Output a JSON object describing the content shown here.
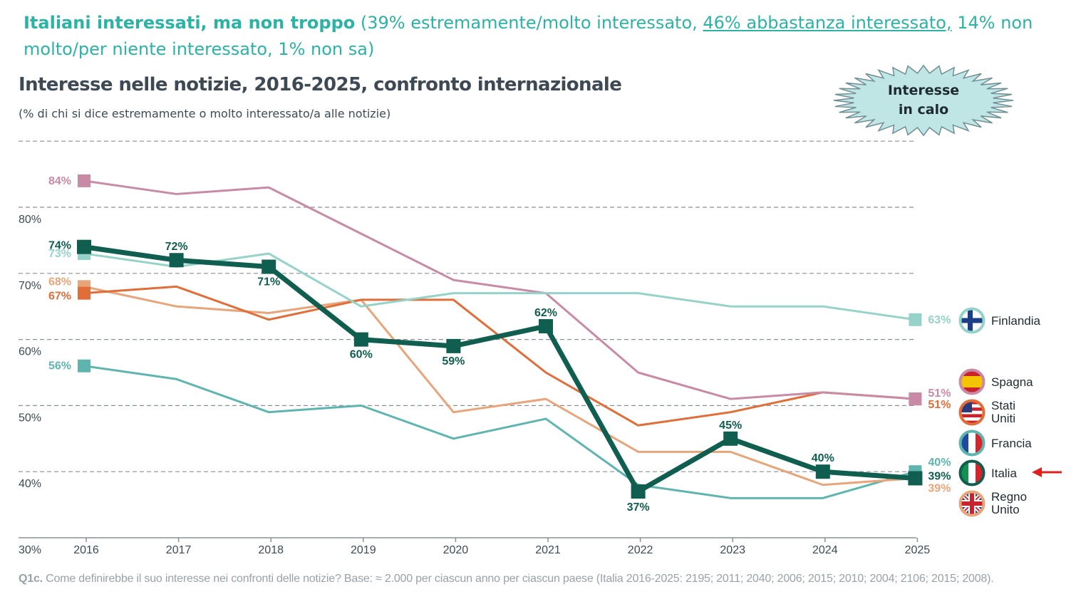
{
  "headline": {
    "bold": "Italiani interessati, ma non troppo",
    "part1": " (39% estremamente/molto interessato, ",
    "underlined": "46% abbastanza interessato,",
    "part2": " 14% non molto/per niente interessato, 1% non sa)"
  },
  "burst_label": {
    "line1": "Interesse",
    "line2": "in calo"
  },
  "footnote": {
    "code": "Q1c.",
    "text": " Come definirebbe il suo interesse nei confronti delle notizie? Base: ≈ 2.000 per ciascun anno per ciascun paese (Italia 2016-2025: 2195; 2011; 2040; 2006; 2015; 2010; 2004; 2106; 2015; 2008)."
  },
  "chart_data": {
    "type": "line",
    "title": "Interesse nelle notizie, 2016-2025, confronto internazionale",
    "subtitle": "(% di chi si dice estremamente o molto interessato/a alle notizie)",
    "x": [
      "2016",
      "2017",
      "2018",
      "2019",
      "2020",
      "2021",
      "2022",
      "2023",
      "2024",
      "2025"
    ],
    "ylim": [
      30,
      88
    ],
    "y_ticks": [
      30,
      40,
      50,
      60,
      70,
      80
    ],
    "y_tick_labels": [
      "30%",
      "40%",
      "50%",
      "60%",
      "70%",
      "80%"
    ],
    "grid": true,
    "legend": "right",
    "series": [
      {
        "name": "Finlandia",
        "color": "#95d3ca",
        "flag": "finland-flag",
        "values": [
          73,
          71,
          73,
          65,
          67,
          67,
          67,
          65,
          65,
          63
        ],
        "labels": [
          {
            "i": 0,
            "text": "73%"
          },
          {
            "i": 9,
            "text": "63%"
          }
        ]
      },
      {
        "name": "Spagna",
        "color": "#c98aa6",
        "flag": "spain-flag",
        "values": [
          84,
          82,
          83,
          76,
          69,
          67,
          55,
          51,
          52,
          51
        ],
        "labels": [
          {
            "i": 0,
            "text": "84%"
          },
          {
            "i": 9,
            "text": "51%"
          }
        ]
      },
      {
        "name": "Stati Uniti",
        "color": "#e16d38",
        "flag": "usa-flag",
        "values": [
          67,
          68,
          63,
          66,
          66,
          55,
          47,
          49,
          52,
          51
        ],
        "labels": [
          {
            "i": 0,
            "text": "67%"
          },
          {
            "i": 9,
            "text": "51%"
          }
        ]
      },
      {
        "name": "Francia",
        "color": "#5eb5b0",
        "flag": "france-flag",
        "values": [
          56,
          54,
          49,
          50,
          45,
          48,
          38,
          36,
          36,
          40
        ],
        "labels": [
          {
            "i": 0,
            "text": "56%"
          },
          {
            "i": 9,
            "text": "40%"
          }
        ]
      },
      {
        "name": "Regno Unito",
        "color": "#e8a57a",
        "flag": "uk-flag",
        "values": [
          68,
          65,
          64,
          66,
          49,
          51,
          43,
          43,
          38,
          39
        ],
        "labels": [
          {
            "i": 0,
            "text": "68%"
          },
          {
            "i": 9,
            "text": "39%"
          }
        ]
      },
      {
        "name": "Italia",
        "color": "#0f5e4f",
        "flag": "italy-flag",
        "values": [
          74,
          72,
          71,
          60,
          59,
          62,
          37,
          45,
          40,
          39
        ],
        "labels": [
          {
            "i": 0,
            "text": "74%"
          },
          {
            "i": 1,
            "text": "72%"
          },
          {
            "i": 2,
            "text": "71%"
          },
          {
            "i": 3,
            "text": "60%"
          },
          {
            "i": 4,
            "text": "59%"
          },
          {
            "i": 5,
            "text": "62%"
          },
          {
            "i": 6,
            "text": "37%"
          },
          {
            "i": 7,
            "text": "45%"
          },
          {
            "i": 8,
            "text": "40%"
          },
          {
            "i": 9,
            "text": "39%"
          }
        ]
      }
    ]
  }
}
